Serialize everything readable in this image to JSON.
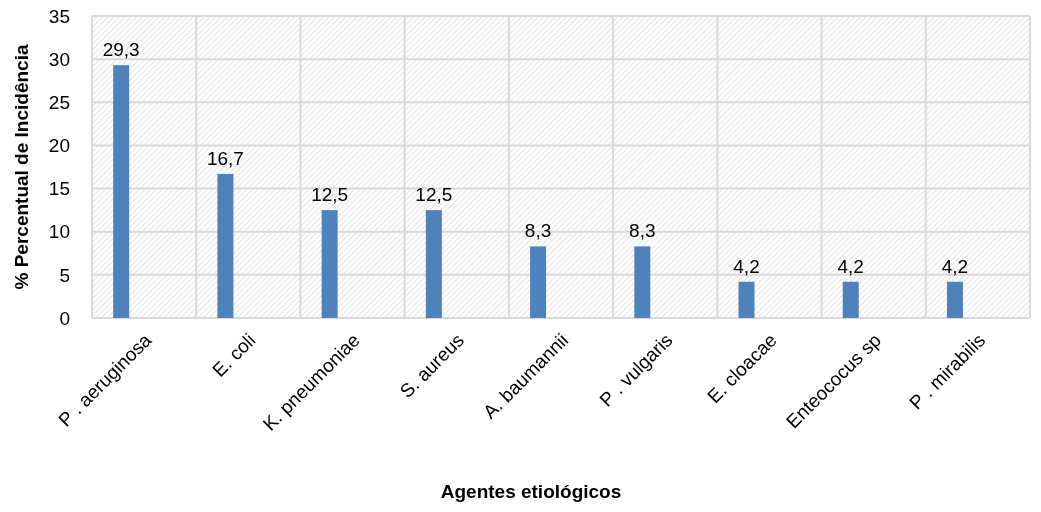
{
  "chart_data": {
    "type": "bar",
    "xlabel": "Agentes etiológicos",
    "ylabel": "% Percentual de Incidência",
    "categories": [
      "P . aeruginosa",
      "E. coli",
      "K. pneumoniae",
      "S. aureus",
      "A. baumannii",
      "P . vulgaris",
      "E. cloacae",
      "Enteococus sp",
      "P . mirabilis"
    ],
    "values": [
      29.3,
      16.7,
      12.5,
      12.5,
      8.3,
      8.3,
      4.2,
      4.2,
      4.2
    ],
    "value_labels": [
      "29,3",
      "16,7",
      "12,5",
      "12,5",
      "8,3",
      "8,3",
      "4,2",
      "4,2",
      "4,2"
    ],
    "color": "#4f81bd",
    "ylim": [
      0,
      35
    ],
    "yticks": [
      0,
      5,
      10,
      15,
      20,
      25,
      30,
      35
    ],
    "grid": true
  }
}
